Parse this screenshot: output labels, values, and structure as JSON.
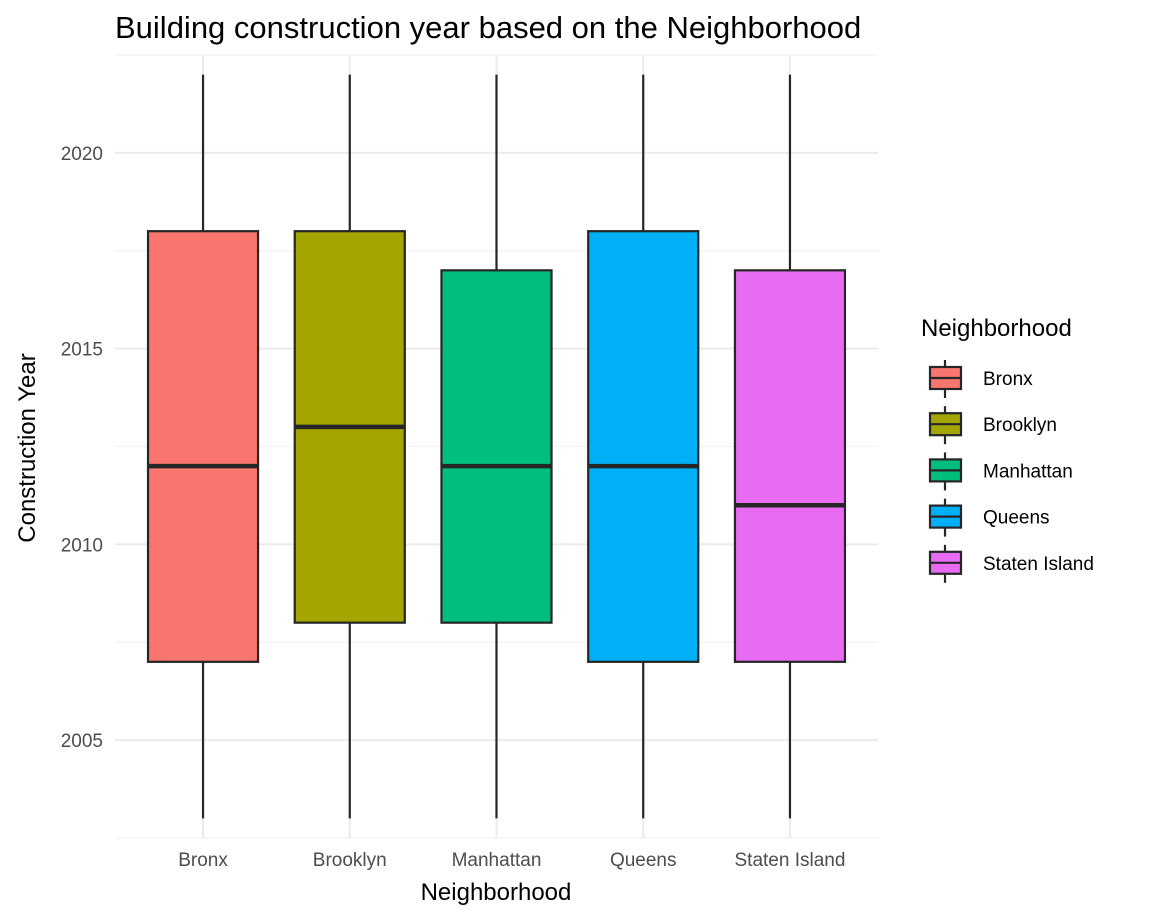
{
  "chart_data": {
    "type": "boxplot",
    "title": "Building construction year based on the Neighborhood",
    "xlabel": "Neighborhood",
    "ylabel": "Construction Year",
    "ylim": [
      2002.5,
      2022.5
    ],
    "yticks": [
      2005,
      2010,
      2015,
      2020
    ],
    "ytick_labels": [
      "2005",
      "2010",
      "2015",
      "2020"
    ],
    "grid": true,
    "legend": {
      "title": "Neighborhood",
      "position": "right"
    },
    "categories": [
      "Bronx",
      "Brooklyn",
      "Manhattan",
      "Queens",
      "Staten Island"
    ],
    "colors": [
      "#F8766D",
      "#A3A500",
      "#00BF7D",
      "#00B0F6",
      "#E76BF3"
    ],
    "box_stats": [
      {
        "name": "Bronx",
        "min": 2003,
        "q1": 2007,
        "median": 2012,
        "q3": 2018,
        "max": 2022
      },
      {
        "name": "Brooklyn",
        "min": 2003,
        "q1": 2008,
        "median": 2013,
        "q3": 2018,
        "max": 2022
      },
      {
        "name": "Manhattan",
        "min": 2003,
        "q1": 2008,
        "median": 2012,
        "q3": 2017,
        "max": 2022
      },
      {
        "name": "Queens",
        "min": 2003,
        "q1": 2007,
        "median": 2012,
        "q3": 2018,
        "max": 2022
      },
      {
        "name": "Staten Island",
        "min": 2003,
        "q1": 2007,
        "median": 2011,
        "q3": 2017,
        "max": 2022
      }
    ]
  }
}
